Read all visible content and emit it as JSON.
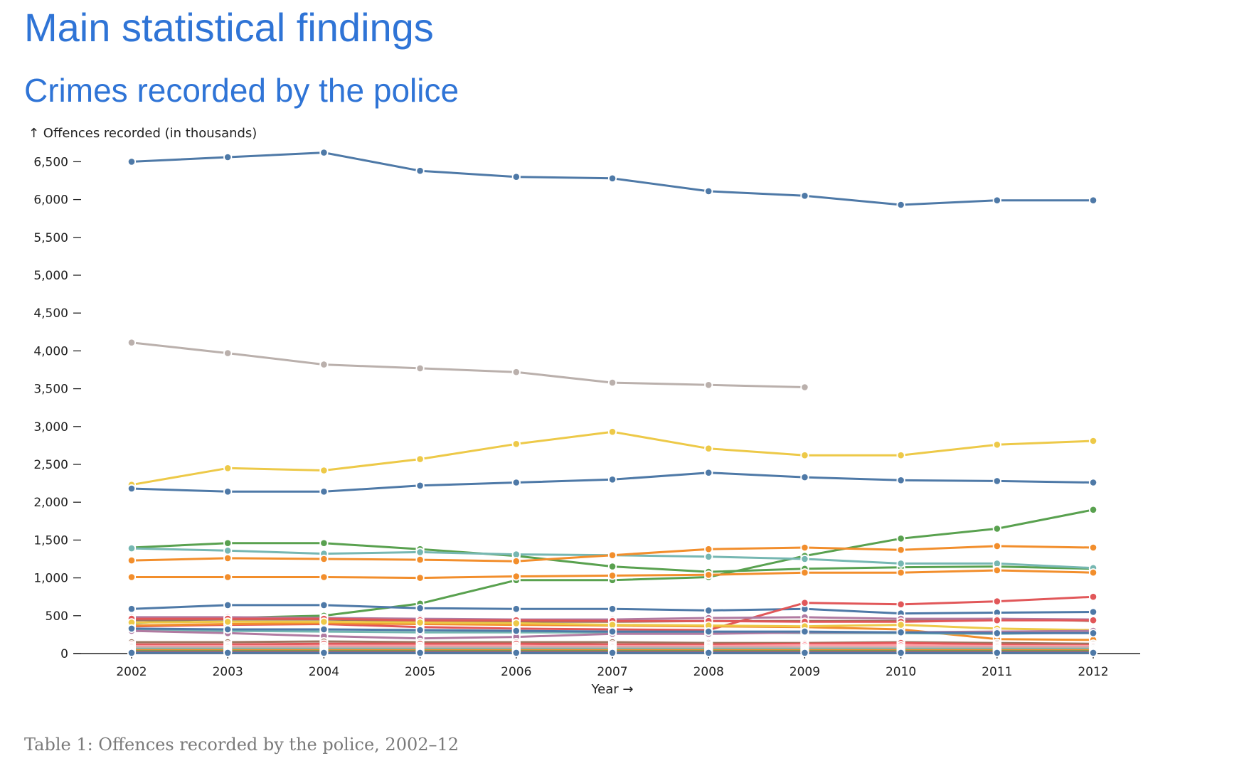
{
  "page": {
    "title": "Main statistical findings",
    "subtitle": "Crimes recorded by the police",
    "caption": "Table 1: Offences recorded by the police, 2002–12"
  },
  "colors": {
    "heading": "#2f74d6",
    "palette": [
      "#4e79a7",
      "#bab0ac",
      "#edc948",
      "#59a14f",
      "#76b7b2",
      "#f28e2c",
      "#e15759",
      "#9c755f",
      "#b07aa1",
      "#ff9da7"
    ]
  },
  "chart_data": {
    "type": "line",
    "title": "",
    "ylabel": "↑ Offences recorded (in thousands)",
    "xlabel": "Year →",
    "x": [
      2002,
      2003,
      2004,
      2005,
      2006,
      2007,
      2008,
      2009,
      2010,
      2011,
      2012
    ],
    "xticks": [
      "2002",
      "2003",
      "2004",
      "2005",
      "2006",
      "2007",
      "2008",
      "2009",
      "2010",
      "2011",
      "2012"
    ],
    "yticks": [
      "0",
      "500",
      "1,000",
      "1,500",
      "2,000",
      "2,500",
      "3,000",
      "3,500",
      "4,000",
      "4,500",
      "5,000",
      "5,500",
      "6,000",
      "6,500"
    ],
    "ylim": [
      0,
      6800
    ],
    "grid": false,
    "legend": "none",
    "series": [
      {
        "color": "#4e79a7",
        "values": [
          6500,
          6560,
          6620,
          6380,
          6300,
          6280,
          6110,
          6050,
          5930,
          5990,
          5990
        ]
      },
      {
        "color": "#bab0ac",
        "values": [
          4110,
          3970,
          3820,
          3770,
          3720,
          3580,
          3550,
          3520,
          null,
          null,
          null
        ]
      },
      {
        "color": "#edc948",
        "values": [
          2230,
          2450,
          2420,
          2570,
          2770,
          2930,
          2710,
          2620,
          2620,
          2760,
          2810
        ]
      },
      {
        "color": "#4e79a7",
        "values": [
          2180,
          2140,
          2140,
          2220,
          2260,
          2300,
          2390,
          2330,
          2290,
          2280,
          2260
        ]
      },
      {
        "color": "#59a14f",
        "values": [
          400,
          470,
          500,
          660,
          970,
          970,
          1010,
          1290,
          1520,
          1650,
          1900
        ]
      },
      {
        "color": "#59a14f",
        "values": [
          1400,
          1460,
          1460,
          1380,
          1290,
          1150,
          1080,
          1120,
          1140,
          1150,
          1120
        ]
      },
      {
        "color": "#76b7b2",
        "values": [
          1390,
          1360,
          1320,
          1340,
          1310,
          1300,
          1280,
          1250,
          1190,
          1190,
          1130
        ]
      },
      {
        "color": "#f28e2c",
        "values": [
          1230,
          1260,
          1250,
          1240,
          1220,
          1300,
          1380,
          1400,
          1370,
          1420,
          1400
        ]
      },
      {
        "color": "#f28e2c",
        "values": [
          1010,
          1010,
          1010,
          1000,
          1020,
          1030,
          1040,
          1070,
          1070,
          1100,
          1070
        ]
      },
      {
        "color": "#4e79a7",
        "values": [
          590,
          640,
          640,
          600,
          590,
          590,
          570,
          590,
          530,
          540,
          550
        ]
      },
      {
        "color": "#e15759",
        "values": [
          360,
          380,
          390,
          350,
          330,
          320,
          310,
          670,
          650,
          690,
          750
        ]
      },
      {
        "color": "#9c755f",
        "values": [
          440,
          450,
          450,
          430,
          420,
          420,
          430,
          430,
          430,
          460,
          430
        ]
      },
      {
        "color": "#b07aa1",
        "values": [
          480,
          480,
          470,
          460,
          450,
          450,
          470,
          480,
          460,
          460,
          450
        ]
      },
      {
        "color": "#e15759",
        "values": [
          460,
          460,
          460,
          440,
          440,
          430,
          430,
          420,
          420,
          440,
          440
        ]
      },
      {
        "color": "#f28e2c",
        "values": [
          370,
          390,
          400,
          390,
          380,
          370,
          360,
          350,
          320,
          190,
          180
        ]
      },
      {
        "color": "#edc948",
        "values": [
          410,
          420,
          420,
          410,
          400,
          380,
          370,
          360,
          380,
          330,
          310
        ]
      },
      {
        "color": "#76b7b2",
        "values": [
          310,
          300,
          290,
          280,
          280,
          280,
          280,
          270,
          270,
          260,
          280
        ]
      },
      {
        "color": "#b07aa1",
        "values": [
          300,
          270,
          230,
          200,
          220,
          260,
          260,
          280,
          280,
          290,
          300
        ]
      },
      {
        "color": "#4e79a7",
        "values": [
          330,
          320,
          320,
          310,
          300,
          290,
          290,
          290,
          280,
          270,
          270
        ]
      },
      {
        "color": "#9c755f",
        "values": [
          150,
          150,
          160,
          150,
          150,
          150,
          140,
          140,
          150,
          140,
          130
        ]
      },
      {
        "color": "#e15759",
        "values": [
          120,
          120,
          130,
          130,
          130,
          120,
          120,
          130,
          140,
          120,
          110
        ]
      },
      {
        "color": "#ff9da7",
        "values": [
          100,
          100,
          100,
          100,
          100,
          100,
          100,
          110,
          110,
          100,
          100
        ]
      },
      {
        "color": "#bab0ac",
        "values": [
          80,
          80,
          80,
          80,
          80,
          80,
          80,
          80,
          80,
          80,
          80
        ]
      },
      {
        "color": "#76b7b2",
        "values": [
          60,
          60,
          60,
          60,
          60,
          60,
          60,
          60,
          60,
          60,
          60
        ]
      },
      {
        "color": "#f28e2c",
        "values": [
          45,
          45,
          45,
          45,
          45,
          45,
          45,
          45,
          45,
          45,
          45
        ]
      },
      {
        "color": "#59a14f",
        "values": [
          30,
          30,
          30,
          30,
          30,
          30,
          30,
          30,
          30,
          30,
          30
        ]
      },
      {
        "color": "#e15759",
        "values": [
          20,
          20,
          20,
          20,
          20,
          20,
          20,
          20,
          20,
          20,
          20
        ]
      },
      {
        "color": "#4e79a7",
        "values": [
          10,
          10,
          10,
          10,
          10,
          10,
          10,
          10,
          10,
          10,
          10
        ]
      }
    ]
  }
}
